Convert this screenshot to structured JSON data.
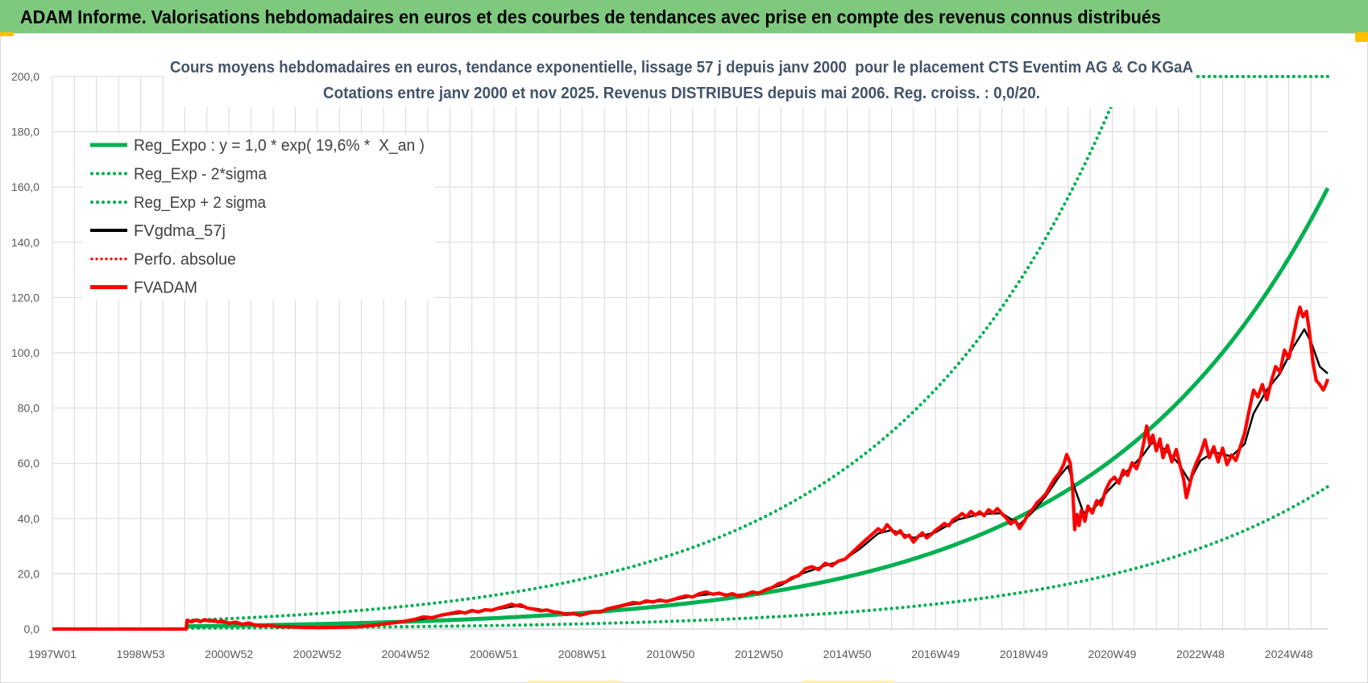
{
  "header": {
    "title": "ADAM Informe. Valorisations hebdomadaires en euros et des courbes de tendances avec prise en compte des revenus connus distribués",
    "background_color": "#7fc97f"
  },
  "chart_data": {
    "type": "line",
    "title_lines": [
      "Cours moyens hebdomadaires en euros, tendance exponentielle, lissage 57 j depuis janv 2000  pour le placement CTS Eventim AG & Co KGaA",
      "Cotations entre janv 2000 et nov 2025. Revenus DISTRIBUES depuis mai 2006. Reg. croiss. : 0,0/20."
    ],
    "xlabel": "",
    "ylabel": "",
    "xlim": [
      1997.0,
      2025.88
    ],
    "ylim": [
      0,
      200
    ],
    "grid": {
      "x_step": 0.5,
      "y_step": 20
    },
    "y_ticks": {
      "step": 20,
      "labels": [
        "0,0",
        "20,0",
        "40,0",
        "60,0",
        "80,0",
        "100,0",
        "120,0",
        "140,0",
        "160,0",
        "180,0",
        "200,0"
      ]
    },
    "x_ticks": {
      "start": 1997.0,
      "step": 2.0,
      "labels": [
        "1997W01",
        "1998W53",
        "2000W52",
        "2002W52",
        "2004W52",
        "2006W51",
        "2008W51",
        "2010W50",
        "2012W50",
        "2014W50",
        "2016W49",
        "2018W49",
        "2020W49",
        "2022W48",
        "2024W48"
      ]
    },
    "series": [
      {
        "name": "Reg_Expo : y = 1,0 * exp( 19,6% *  X_an )",
        "color": "#00b050",
        "model": {
          "a": 1.0,
          "rate": 0.196,
          "t0": 2000.0,
          "factor": 1.0,
          "x_start": 2000.05,
          "x_end": 2025.88
        }
      },
      {
        "name": "Reg_Exp - 2*sigma",
        "color": "#00b050",
        "model": {
          "a": 1.0,
          "rate": 0.196,
          "t0": 2000.0,
          "factor": 0.323,
          "x_start": 2000.05,
          "x_end": 2025.88
        }
      },
      {
        "name": "Reg_Exp + 2 sigma",
        "color": "#00b050",
        "model": {
          "a": 1.0,
          "rate": 0.196,
          "t0": 2000.0,
          "factor": 3.1,
          "x_start": 2000.05,
          "x_end": 2025.88
        }
      },
      {
        "name": "FVgdma_57j",
        "color": "#000000",
        "points": [
          [
            1997.0,
            0
          ],
          [
            2000.03,
            0
          ],
          [
            2000.08,
            2.9
          ],
          [
            2000.5,
            2.9
          ],
          [
            2001.0,
            2.2
          ],
          [
            2001.5,
            1.7
          ],
          [
            2002.0,
            1.1
          ],
          [
            2002.5,
            0.8
          ],
          [
            2003.0,
            0.6
          ],
          [
            2003.5,
            0.7
          ],
          [
            2004.0,
            1.0
          ],
          [
            2004.5,
            1.7
          ],
          [
            2005.0,
            2.7
          ],
          [
            2005.5,
            4.0
          ],
          [
            2006.0,
            5.3
          ],
          [
            2006.5,
            6.3
          ],
          [
            2007.0,
            7.0
          ],
          [
            2007.5,
            8.3
          ],
          [
            2008.0,
            7.2
          ],
          [
            2008.5,
            5.9
          ],
          [
            2009.0,
            5.3
          ],
          [
            2009.5,
            6.7
          ],
          [
            2010.0,
            8.6
          ],
          [
            2010.5,
            9.8
          ],
          [
            2011.0,
            10.3
          ],
          [
            2011.5,
            11.9
          ],
          [
            2012.0,
            12.8
          ],
          [
            2012.5,
            12.3
          ],
          [
            2013.0,
            13.3
          ],
          [
            2013.5,
            15.9
          ],
          [
            2014.0,
            20.2
          ],
          [
            2014.5,
            23.0
          ],
          [
            2014.9,
            24.8
          ],
          [
            2015.3,
            29.2
          ],
          [
            2015.7,
            34.6
          ],
          [
            2016.0,
            35.8
          ],
          [
            2016.5,
            33.0
          ],
          [
            2017.0,
            35.0
          ],
          [
            2017.5,
            39.6
          ],
          [
            2018.0,
            41.6
          ],
          [
            2018.5,
            41.9
          ],
          [
            2018.9,
            37.8
          ],
          [
            2019.2,
            42.4
          ],
          [
            2019.5,
            48.2
          ],
          [
            2019.8,
            55.2
          ],
          [
            2020.0,
            59.0
          ],
          [
            2020.15,
            51.0
          ],
          [
            2020.35,
            42.0
          ],
          [
            2020.6,
            43.8
          ],
          [
            2020.9,
            50.0
          ],
          [
            2021.3,
            56.5
          ],
          [
            2021.7,
            63.0
          ],
          [
            2021.9,
            67.5
          ],
          [
            2022.2,
            65.0
          ],
          [
            2022.5,
            60.0
          ],
          [
            2022.75,
            53.5
          ],
          [
            2023.0,
            61.0
          ],
          [
            2023.3,
            64.0
          ],
          [
            2023.7,
            62.5
          ],
          [
            2024.0,
            67.0
          ],
          [
            2024.2,
            78.0
          ],
          [
            2024.5,
            86.5
          ],
          [
            2024.8,
            92.5
          ],
          [
            2025.1,
            102.0
          ],
          [
            2025.35,
            108.5
          ],
          [
            2025.5,
            104.0
          ],
          [
            2025.7,
            95.0
          ],
          [
            2025.88,
            92.5
          ]
        ]
      },
      {
        "name": "Perfo. absolue",
        "color": "#ff0000",
        "points": []
      },
      {
        "name": "FVADAM",
        "color": "#ff0000",
        "points": [
          [
            1997.0,
            0
          ],
          [
            2000.03,
            0
          ],
          [
            2000.05,
            3.2
          ],
          [
            2000.15,
            2.6
          ],
          [
            2000.25,
            3.3
          ],
          [
            2000.35,
            2.7
          ],
          [
            2000.45,
            3.4
          ],
          [
            2000.55,
            2.9
          ],
          [
            2000.65,
            3.2
          ],
          [
            2000.75,
            2.6
          ],
          [
            2000.85,
            2.9
          ],
          [
            2001.0,
            2.1
          ],
          [
            2001.15,
            2.5
          ],
          [
            2001.3,
            1.7
          ],
          [
            2001.45,
            2.2
          ],
          [
            2001.6,
            1.4
          ],
          [
            2001.75,
            1.1
          ],
          [
            2001.9,
            1.3
          ],
          [
            2002.1,
            0.9
          ],
          [
            2002.4,
            0.8
          ],
          [
            2002.7,
            0.6
          ],
          [
            2003.0,
            0.5
          ],
          [
            2003.3,
            0.6
          ],
          [
            2003.6,
            0.7
          ],
          [
            2003.9,
            0.8
          ],
          [
            2004.2,
            1.2
          ],
          [
            2004.5,
            1.8
          ],
          [
            2004.8,
            2.4
          ],
          [
            2005.0,
            2.9
          ],
          [
            2005.2,
            3.5
          ],
          [
            2005.4,
            4.4
          ],
          [
            2005.6,
            4.1
          ],
          [
            2005.8,
            5.0
          ],
          [
            2006.0,
            5.6
          ],
          [
            2006.2,
            6.3
          ],
          [
            2006.35,
            5.8
          ],
          [
            2006.5,
            6.7
          ],
          [
            2006.65,
            6.2
          ],
          [
            2006.8,
            7.0
          ],
          [
            2006.95,
            6.8
          ],
          [
            2007.1,
            7.6
          ],
          [
            2007.25,
            8.2
          ],
          [
            2007.4,
            9.0
          ],
          [
            2007.5,
            8.4
          ],
          [
            2007.6,
            8.8
          ],
          [
            2007.75,
            7.6
          ],
          [
            2007.9,
            7.2
          ],
          [
            2008.05,
            6.6
          ],
          [
            2008.2,
            6.9
          ],
          [
            2008.35,
            6.2
          ],
          [
            2008.5,
            5.9
          ],
          [
            2008.65,
            5.3
          ],
          [
            2008.8,
            5.6
          ],
          [
            2008.95,
            5.0
          ],
          [
            2009.1,
            5.6
          ],
          [
            2009.25,
            6.3
          ],
          [
            2009.4,
            6.1
          ],
          [
            2009.55,
            7.2
          ],
          [
            2009.7,
            7.8
          ],
          [
            2009.85,
            8.3
          ],
          [
            2010.0,
            8.9
          ],
          [
            2010.15,
            9.6
          ],
          [
            2010.3,
            9.3
          ],
          [
            2010.45,
            10.2
          ],
          [
            2010.6,
            9.8
          ],
          [
            2010.75,
            10.5
          ],
          [
            2010.9,
            10.0
          ],
          [
            2011.05,
            10.6
          ],
          [
            2011.2,
            11.4
          ],
          [
            2011.35,
            12.0
          ],
          [
            2011.5,
            11.6
          ],
          [
            2011.65,
            12.8
          ],
          [
            2011.8,
            13.4
          ],
          [
            2011.95,
            12.6
          ],
          [
            2012.1,
            13.0
          ],
          [
            2012.25,
            12.2
          ],
          [
            2012.4,
            12.8
          ],
          [
            2012.55,
            11.9
          ],
          [
            2012.7,
            12.5
          ],
          [
            2012.85,
            13.4
          ],
          [
            2013.0,
            13.0
          ],
          [
            2013.15,
            14.2
          ],
          [
            2013.3,
            15.0
          ],
          [
            2013.45,
            16.5
          ],
          [
            2013.6,
            17.0
          ],
          [
            2013.75,
            18.6
          ],
          [
            2013.9,
            19.4
          ],
          [
            2014.05,
            21.8
          ],
          [
            2014.2,
            22.6
          ],
          [
            2014.35,
            21.5
          ],
          [
            2014.5,
            23.8
          ],
          [
            2014.65,
            22.9
          ],
          [
            2014.8,
            24.6
          ],
          [
            2014.95,
            25.3
          ],
          [
            2015.1,
            27.5
          ],
          [
            2015.25,
            29.8
          ],
          [
            2015.4,
            32.0
          ],
          [
            2015.55,
            34.1
          ],
          [
            2015.7,
            36.3
          ],
          [
            2015.8,
            35.2
          ],
          [
            2015.9,
            37.8
          ],
          [
            2016.0,
            36.0
          ],
          [
            2016.1,
            34.3
          ],
          [
            2016.2,
            35.6
          ],
          [
            2016.3,
            33.2
          ],
          [
            2016.4,
            34.0
          ],
          [
            2016.5,
            31.5
          ],
          [
            2016.6,
            33.4
          ],
          [
            2016.7,
            34.8
          ],
          [
            2016.8,
            33.0
          ],
          [
            2016.9,
            34.2
          ],
          [
            2017.0,
            35.8
          ],
          [
            2017.1,
            36.9
          ],
          [
            2017.2,
            38.2
          ],
          [
            2017.3,
            37.4
          ],
          [
            2017.4,
            39.6
          ],
          [
            2017.5,
            40.5
          ],
          [
            2017.6,
            41.8
          ],
          [
            2017.7,
            40.6
          ],
          [
            2017.8,
            42.6
          ],
          [
            2017.9,
            41.2
          ],
          [
            2018.0,
            42.4
          ],
          [
            2018.1,
            41.0
          ],
          [
            2018.2,
            43.2
          ],
          [
            2018.3,
            42.0
          ],
          [
            2018.4,
            43.6
          ],
          [
            2018.5,
            41.8
          ],
          [
            2018.6,
            40.2
          ],
          [
            2018.7,
            38.0
          ],
          [
            2018.8,
            39.4
          ],
          [
            2018.9,
            36.4
          ],
          [
            2019.0,
            38.8
          ],
          [
            2019.1,
            41.6
          ],
          [
            2019.2,
            43.4
          ],
          [
            2019.3,
            45.8
          ],
          [
            2019.4,
            47.2
          ],
          [
            2019.5,
            49.0
          ],
          [
            2019.6,
            51.8
          ],
          [
            2019.7,
            54.5
          ],
          [
            2019.8,
            56.4
          ],
          [
            2019.9,
            59.6
          ],
          [
            2019.97,
            63.2
          ],
          [
            2020.05,
            60.0
          ],
          [
            2020.1,
            52.0
          ],
          [
            2020.15,
            36.0
          ],
          [
            2020.2,
            41.5
          ],
          [
            2020.25,
            37.5
          ],
          [
            2020.3,
            43.0
          ],
          [
            2020.38,
            39.0
          ],
          [
            2020.45,
            44.5
          ],
          [
            2020.55,
            42.0
          ],
          [
            2020.65,
            46.5
          ],
          [
            2020.75,
            44.8
          ],
          [
            2020.85,
            50.2
          ],
          [
            2020.95,
            53.5
          ],
          [
            2021.05,
            55.0
          ],
          [
            2021.15,
            52.8
          ],
          [
            2021.25,
            57.5
          ],
          [
            2021.35,
            55.6
          ],
          [
            2021.45,
            60.2
          ],
          [
            2021.55,
            58.0
          ],
          [
            2021.65,
            62.4
          ],
          [
            2021.72,
            68.0
          ],
          [
            2021.78,
            73.5
          ],
          [
            2021.85,
            67.0
          ],
          [
            2021.92,
            70.2
          ],
          [
            2022.0,
            64.5
          ],
          [
            2022.08,
            68.8
          ],
          [
            2022.15,
            62.0
          ],
          [
            2022.25,
            66.5
          ],
          [
            2022.35,
            60.5
          ],
          [
            2022.45,
            65.0
          ],
          [
            2022.55,
            58.5
          ],
          [
            2022.62,
            54.0
          ],
          [
            2022.68,
            47.5
          ],
          [
            2022.75,
            52.0
          ],
          [
            2022.82,
            56.5
          ],
          [
            2022.9,
            60.0
          ],
          [
            2023.0,
            63.5
          ],
          [
            2023.1,
            68.5
          ],
          [
            2023.2,
            62.0
          ],
          [
            2023.3,
            66.0
          ],
          [
            2023.4,
            60.5
          ],
          [
            2023.5,
            65.5
          ],
          [
            2023.6,
            59.5
          ],
          [
            2023.7,
            63.0
          ],
          [
            2023.8,
            61.0
          ],
          [
            2023.9,
            66.0
          ],
          [
            2024.0,
            71.0
          ],
          [
            2024.1,
            79.0
          ],
          [
            2024.2,
            86.5
          ],
          [
            2024.3,
            84.0
          ],
          [
            2024.4,
            88.5
          ],
          [
            2024.5,
            83.0
          ],
          [
            2024.6,
            89.5
          ],
          [
            2024.7,
            95.0
          ],
          [
            2024.8,
            93.0
          ],
          [
            2024.9,
            101.0
          ],
          [
            2025.0,
            98.0
          ],
          [
            2025.1,
            105.5
          ],
          [
            2025.18,
            112.0
          ],
          [
            2025.25,
            116.5
          ],
          [
            2025.32,
            113.0
          ],
          [
            2025.4,
            115.0
          ],
          [
            2025.47,
            107.0
          ],
          [
            2025.55,
            96.0
          ],
          [
            2025.62,
            90.0
          ],
          [
            2025.7,
            88.5
          ],
          [
            2025.78,
            86.5
          ],
          [
            2025.85,
            89.0
          ],
          [
            2025.88,
            90.5
          ]
        ]
      }
    ]
  }
}
